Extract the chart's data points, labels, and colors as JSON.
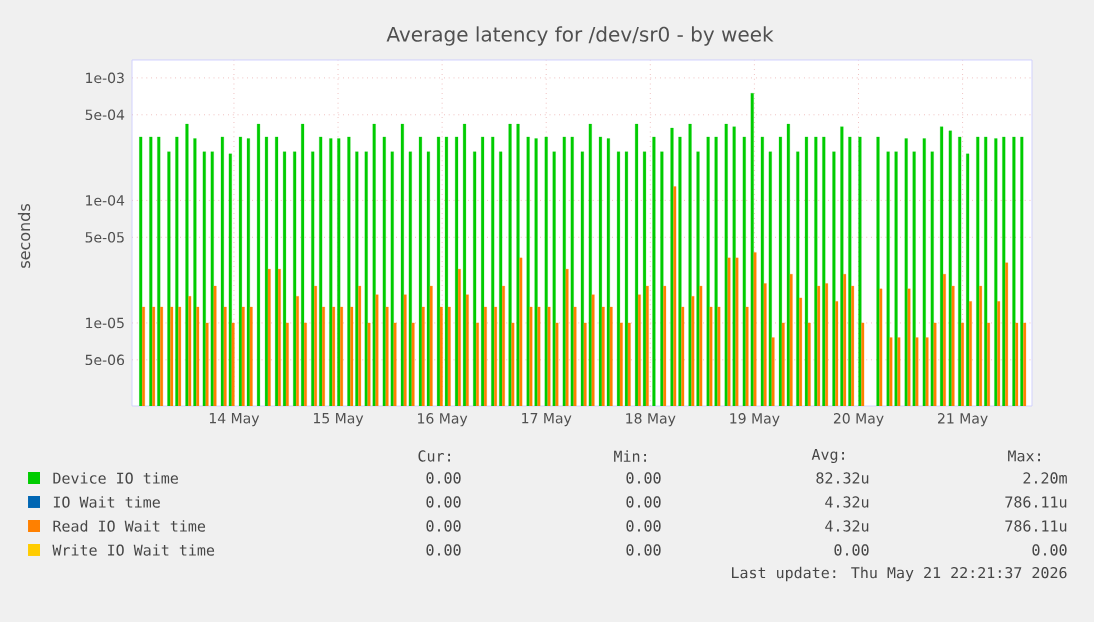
{
  "chart_data": {
    "type": "bar",
    "title": "Average latency for /dev/sr0 - by week",
    "ylabel": "seconds",
    "log": "y",
    "grid": true,
    "legend": "bottom",
    "x": [
      "2026-05-13T02:30",
      "2026-05-13T04:50",
      "2026-05-13T06:40",
      "2026-05-13T09:00",
      "2026-05-13T10:50",
      "2026-05-13T13:10",
      "2026-05-13T15:00",
      "2026-05-13T17:10",
      "2026-05-13T19:00",
      "2026-05-13T21:20",
      "2026-05-13T23:10",
      "2026-05-14T01:30",
      "2026-05-14T03:20",
      "2026-05-14T05:40",
      "2026-05-14T07:30",
      "2026-05-14T09:50",
      "2026-05-14T11:40",
      "2026-05-14T14:00",
      "2026-05-14T15:50",
      "2026-05-14T18:10",
      "2026-05-14T20:00",
      "2026-05-14T22:20",
      "2026-05-15T00:10",
      "2026-05-15T02:30",
      "2026-05-15T04:20",
      "2026-05-15T06:30",
      "2026-05-15T08:20",
      "2026-05-15T10:40",
      "2026-05-15T12:30",
      "2026-05-15T14:50",
      "2026-05-15T16:40",
      "2026-05-15T19:00",
      "2026-05-15T20:50",
      "2026-05-15T23:10",
      "2026-05-16T01:00",
      "2026-05-16T03:20",
      "2026-05-16T05:10",
      "2026-05-16T07:30",
      "2026-05-16T09:20",
      "2026-05-16T11:40",
      "2026-05-16T13:30",
      "2026-05-16T15:40",
      "2026-05-16T17:30",
      "2026-05-16T19:50",
      "2026-05-16T21:40",
      "2026-05-17T00:00",
      "2026-05-17T01:50",
      "2026-05-17T04:10",
      "2026-05-17T06:00",
      "2026-05-17T08:20",
      "2026-05-17T10:10",
      "2026-05-17T12:30",
      "2026-05-17T14:20",
      "2026-05-17T16:40",
      "2026-05-17T18:30",
      "2026-05-17T20:50",
      "2026-05-17T22:40",
      "2026-05-18T00:50",
      "2026-05-18T02:40",
      "2026-05-18T05:00",
      "2026-05-18T06:50",
      "2026-05-18T09:10",
      "2026-05-18T11:00",
      "2026-05-18T13:20",
      "2026-05-18T15:10",
      "2026-05-18T17:30",
      "2026-05-18T19:20",
      "2026-05-18T21:40",
      "2026-05-18T23:30",
      "2026-05-19T01:50",
      "2026-05-19T03:40",
      "2026-05-19T06:00",
      "2026-05-19T07:50",
      "2026-05-19T10:00",
      "2026-05-19T12:00",
      "2026-05-19T14:10",
      "2026-05-19T16:00",
      "2026-05-19T18:20",
      "2026-05-19T20:10",
      "2026-05-19T22:00",
      "2026-05-20T00:20",
      "2026-05-20T04:30",
      "2026-05-20T06:50",
      "2026-05-20T08:40",
      "2026-05-20T11:00",
      "2026-05-20T12:50",
      "2026-05-20T15:10",
      "2026-05-20T17:00",
      "2026-05-20T19:10",
      "2026-05-20T21:10",
      "2026-05-20T23:20",
      "2026-05-21T01:10",
      "2026-05-21T03:30",
      "2026-05-21T05:20",
      "2026-05-21T07:40",
      "2026-05-21T09:30",
      "2026-05-21T11:50",
      "2026-05-21T13:40"
    ],
    "xlim": [
      "2026-05-13T00:30",
      "2026-05-21T16:00"
    ],
    "xticks": [
      {
        "value": "2026-05-14",
        "label": "14 May"
      },
      {
        "value": "2026-05-15",
        "label": "15 May"
      },
      {
        "value": "2026-05-16",
        "label": "16 May"
      },
      {
        "value": "2026-05-17",
        "label": "17 May"
      },
      {
        "value": "2026-05-18",
        "label": "18 May"
      },
      {
        "value": "2026-05-19",
        "label": "19 May"
      },
      {
        "value": "2026-05-20",
        "label": "20 May"
      },
      {
        "value": "2026-05-21",
        "label": "21 May"
      }
    ],
    "ylim": [
      2.1e-06,
      0.0014
    ],
    "yticks": [
      {
        "value": 5e-06,
        "label": "5e-06"
      },
      {
        "value": 1e-05,
        "label": "1e-05"
      },
      {
        "value": 5e-05,
        "label": "5e-05"
      },
      {
        "value": 0.0001,
        "label": "1e-04"
      },
      {
        "value": 0.0005,
        "label": "5e-04"
      },
      {
        "value": 0.001,
        "label": "1e-03"
      }
    ],
    "series": [
      {
        "name": "Device IO time",
        "color": "#00cc00",
        "values": [
          0.00033,
          0.00033,
          0.00033,
          0.00025,
          0.00033,
          0.00042,
          0.00032,
          0.00025,
          0.00025,
          0.00033,
          0.00024,
          0.00033,
          0.00032,
          0.00042,
          0.00033,
          0.00033,
          0.00025,
          0.00025,
          0.00042,
          0.00025,
          0.00033,
          0.00032,
          0.00032,
          0.00033,
          0.00025,
          0.00025,
          0.00042,
          0.00033,
          0.00025,
          0.00042,
          0.00025,
          0.00033,
          0.00025,
          0.00033,
          0.00033,
          0.00033,
          0.00042,
          0.00025,
          0.00033,
          0.00033,
          0.00025,
          0.00042,
          0.00042,
          0.00033,
          0.00032,
          0.00033,
          0.00025,
          0.00033,
          0.00033,
          0.00025,
          0.00042,
          0.00033,
          0.00032,
          0.00025,
          0.00025,
          0.00042,
          0.00025,
          0.00033,
          0.00025,
          0.00039,
          0.00033,
          0.00042,
          0.00025,
          0.00033,
          0.00033,
          0.00042,
          0.0004,
          0.00033,
          0.00075,
          0.00033,
          0.00025,
          0.00033,
          0.00042,
          0.00025,
          0.00033,
          0.00033,
          0.00033,
          0.00025,
          0.0004,
          0.00033,
          0.00033,
          0.00033,
          0.00025,
          0.00025,
          0.00032,
          0.00025,
          0.00032,
          0.00025,
          0.0004,
          0.00037,
          0.00033,
          0.00024,
          0.00033,
          0.00033,
          0.00032,
          0.00033,
          0.00033,
          0.00033
        ]
      },
      {
        "name": "IO Wait time",
        "color": "#0066b3",
        "values": [
          null,
          null,
          null,
          null,
          null,
          null,
          null,
          null,
          null,
          null,
          null,
          null,
          null,
          null,
          null,
          null,
          null,
          null,
          null,
          null,
          null,
          null,
          null,
          null,
          null,
          null,
          null,
          null,
          null,
          null,
          null,
          null,
          null,
          null,
          null,
          null,
          null,
          null,
          null,
          null,
          null,
          null,
          null,
          null,
          null,
          null,
          null,
          null,
          null,
          null,
          null,
          null,
          null,
          null,
          null,
          null,
          null,
          null,
          null,
          null,
          null,
          null,
          null,
          null,
          null,
          null,
          null,
          null,
          null,
          null,
          null,
          null,
          null,
          null,
          null,
          null,
          null,
          null,
          null,
          null,
          null,
          null,
          null,
          null,
          null,
          null,
          null,
          null,
          null,
          null,
          null,
          null,
          null,
          null,
          null,
          null,
          null,
          null
        ]
      },
      {
        "name": "Read IO Wait time",
        "color": "#ff8000",
        "values": [
          1.35e-05,
          1.35e-05,
          1.35e-05,
          1.35e-05,
          1.35e-05,
          1.65e-05,
          1.35e-05,
          1e-05,
          2e-05,
          1.35e-05,
          1e-05,
          1.35e-05,
          1.35e-05,
          null,
          2.75e-05,
          2.75e-05,
          1e-05,
          1.65e-05,
          1e-05,
          2e-05,
          1.35e-05,
          1.35e-05,
          1.35e-05,
          1.35e-05,
          2e-05,
          1e-05,
          1.7e-05,
          1.35e-05,
          1e-05,
          1.7e-05,
          1e-05,
          1.35e-05,
          2e-05,
          1.35e-05,
          1.35e-05,
          2.75e-05,
          1.7e-05,
          1e-05,
          1.35e-05,
          1.35e-05,
          2e-05,
          1e-05,
          3.4e-05,
          1.35e-05,
          1.35e-05,
          1.35e-05,
          1e-05,
          2.75e-05,
          1.35e-05,
          1e-05,
          1.7e-05,
          1.35e-05,
          1.35e-05,
          1e-05,
          1e-05,
          1.7e-05,
          2e-05,
          null,
          2e-05,
          0.00013,
          1.35e-05,
          1.65e-05,
          2e-05,
          1.35e-05,
          1.35e-05,
          3.4e-05,
          3.4e-05,
          1.35e-05,
          3.75e-05,
          2.1e-05,
          7.6e-06,
          1e-05,
          2.5e-05,
          1.6e-05,
          1e-05,
          2e-05,
          2.1e-05,
          1.5e-05,
          2.5e-05,
          2e-05,
          1e-05,
          1.9e-05,
          7.6e-06,
          7.6e-06,
          1.9e-05,
          7.6e-06,
          7.6e-06,
          1e-05,
          2.5e-05,
          2e-05,
          1e-05,
          1.5e-05,
          2e-05,
          1e-05,
          1.5e-05,
          3.1e-05,
          1e-05,
          1e-05
        ]
      },
      {
        "name": "Write IO Wait time",
        "color": "#ffcc00",
        "values": [
          null,
          null,
          null,
          null,
          null,
          null,
          null,
          null,
          null,
          null,
          null,
          null,
          null,
          null,
          null,
          null,
          null,
          null,
          null,
          null,
          null,
          null,
          null,
          null,
          null,
          null,
          null,
          null,
          null,
          null,
          null,
          null,
          null,
          null,
          null,
          null,
          null,
          null,
          null,
          null,
          null,
          null,
          null,
          null,
          null,
          null,
          null,
          null,
          null,
          null,
          null,
          null,
          null,
          null,
          null,
          null,
          null,
          null,
          null,
          null,
          null,
          null,
          null,
          null,
          null,
          null,
          null,
          null,
          null,
          null,
          null,
          null,
          null,
          null,
          null,
          null,
          null,
          null,
          null,
          null,
          null,
          null,
          null,
          null,
          null,
          null,
          null,
          null,
          null,
          null,
          null,
          null,
          null,
          null,
          null,
          null,
          null,
          null
        ]
      }
    ],
    "annotations": [
      "Cur:",
      "Min:",
      "Avg:",
      "Max:",
      "0.00",
      "0.00",
      "82.32u",
      "2.20m",
      "0.00",
      "0.00",
      "4.32u",
      "786.11u",
      "0.00",
      "0.00",
      "4.32u",
      "786.11u",
      "0.00",
      "0.00",
      "0.00",
      "0.00",
      "Last update: Thu May 21 22:21:37 2026"
    ]
  }
}
